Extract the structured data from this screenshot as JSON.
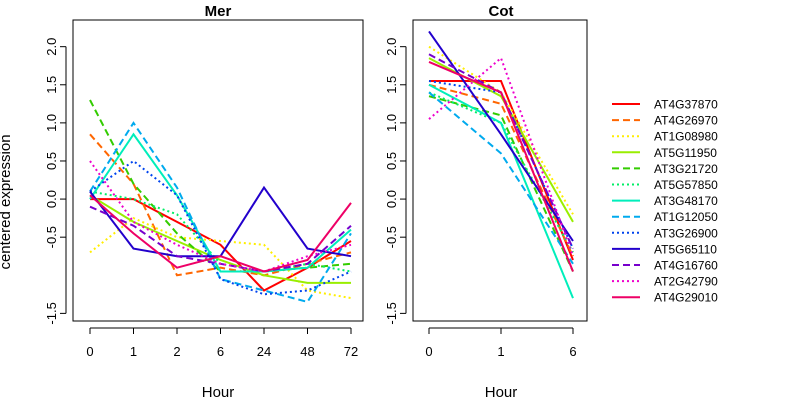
{
  "chart_data": [
    {
      "type": "line",
      "title": "Mer",
      "xlabel": "Hour",
      "ylabel": "centered expression",
      "categories": [
        "0",
        "1",
        "2",
        "6",
        "24",
        "48",
        "72"
      ],
      "ylim": [
        -1.6,
        2.35
      ],
      "yticks": [
        "-1.5",
        "-0.5",
        "0.0",
        "0.5",
        "1.0",
        "1.5",
        "2.0"
      ],
      "series": [
        {
          "name": "AT4G37870",
          "color": "#ff0000",
          "dash": "solid",
          "values": [
            0.0,
            0.0,
            -0.3,
            -0.6,
            -1.2,
            -0.9,
            -0.55
          ]
        },
        {
          "name": "AT4G26970",
          "color": "#ff6600",
          "dash": "dashed",
          "values": [
            0.85,
            0.2,
            -1.0,
            -0.9,
            -1.0,
            -0.85,
            -0.7
          ]
        },
        {
          "name": "AT1G08980",
          "color": "#ffee00",
          "dash": "dotted",
          "values": [
            -0.7,
            -0.25,
            -0.5,
            -0.55,
            -0.6,
            -1.2,
            -1.3
          ]
        },
        {
          "name": "AT5G11950",
          "color": "#99ee00",
          "dash": "solid",
          "values": [
            0.05,
            -0.3,
            -0.55,
            -0.8,
            -1.0,
            -1.1,
            -1.1
          ]
        },
        {
          "name": "AT3G21720",
          "color": "#33cc00",
          "dash": "dashed",
          "values": [
            1.3,
            0.2,
            -0.45,
            -0.95,
            -0.95,
            -0.9,
            -0.85
          ]
        },
        {
          "name": "AT5G57850",
          "color": "#00ee66",
          "dash": "dotted",
          "values": [
            0.1,
            0.0,
            -0.2,
            -0.85,
            -0.95,
            -0.85,
            -0.95
          ]
        },
        {
          "name": "AT3G48170",
          "color": "#00eebb",
          "dash": "solid",
          "values": [
            0.0,
            0.85,
            0.05,
            -0.95,
            -0.95,
            -0.9,
            -0.4
          ]
        },
        {
          "name": "AT1G12050",
          "color": "#00aaee",
          "dash": "dashed",
          "values": [
            0.1,
            1.0,
            0.15,
            -1.05,
            -1.2,
            -1.35,
            -0.45
          ]
        },
        {
          "name": "AT3G26900",
          "color": "#0044ee",
          "dash": "dotted",
          "values": [
            0.1,
            0.5,
            0.05,
            -1.05,
            -1.25,
            -1.2,
            -0.95
          ]
        },
        {
          "name": "AT5G65110",
          "color": "#2200cc",
          "dash": "solid",
          "values": [
            0.1,
            -0.65,
            -0.75,
            -0.75,
            0.15,
            -0.65,
            -0.75
          ]
        },
        {
          "name": "AT4G16760",
          "color": "#7700cc",
          "dash": "dashed",
          "values": [
            -0.1,
            -0.35,
            -0.75,
            -0.85,
            -0.95,
            -0.85,
            -0.35
          ]
        },
        {
          "name": "AT2G42790",
          "color": "#ee00cc",
          "dash": "dotted",
          "values": [
            0.5,
            -0.3,
            -0.6,
            -0.85,
            -0.95,
            -0.75,
            -0.6
          ]
        },
        {
          "name": "AT4G29010",
          "color": "#ee0066",
          "dash": "solid",
          "values": [
            0.05,
            -0.45,
            -0.9,
            -0.75,
            -0.95,
            -0.8,
            -0.05
          ]
        }
      ]
    },
    {
      "type": "line",
      "title": "Cot",
      "xlabel": "Hour",
      "categories": [
        "0",
        "1",
        "6"
      ],
      "ylim": [
        -1.6,
        2.35
      ],
      "yticks": [
        "-1.5",
        "-0.5",
        "0.0",
        "0.5",
        "1.0",
        "1.5",
        "2.0"
      ],
      "series": [
        {
          "name": "AT4G37870",
          "values": [
            1.55,
            1.55,
            -0.8
          ]
        },
        {
          "name": "AT4G26970",
          "values": [
            1.5,
            1.25,
            -0.75
          ]
        },
        {
          "name": "AT1G08980",
          "values": [
            2.0,
            1.4,
            -0.2
          ]
        },
        {
          "name": "AT5G11950",
          "values": [
            1.85,
            1.35,
            -0.3
          ]
        },
        {
          "name": "AT3G21720",
          "values": [
            1.35,
            1.1,
            -0.95
          ]
        },
        {
          "name": "AT5G57850",
          "values": [
            1.4,
            1.0,
            -0.7
          ]
        },
        {
          "name": "AT3G48170",
          "values": [
            1.5,
            1.0,
            -1.3
          ]
        },
        {
          "name": "AT1G12050",
          "values": [
            1.4,
            0.6,
            -0.85
          ]
        },
        {
          "name": "AT3G26900",
          "values": [
            1.55,
            1.4,
            -0.65
          ]
        },
        {
          "name": "AT5G65110",
          "values": [
            2.2,
            0.85,
            -0.55
          ]
        },
        {
          "name": "AT4G16760",
          "values": [
            1.9,
            1.4,
            -0.65
          ]
        },
        {
          "name": "AT2G42790",
          "values": [
            1.05,
            1.85,
            -0.75
          ]
        },
        {
          "name": "AT4G29010",
          "values": [
            1.8,
            1.4,
            -0.95
          ]
        }
      ]
    }
  ]
}
